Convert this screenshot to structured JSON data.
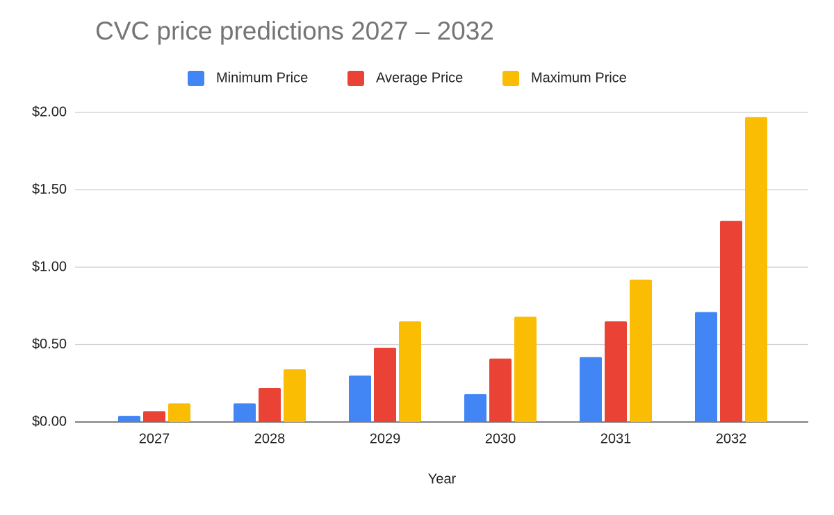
{
  "chart_data": {
    "type": "bar",
    "title": "CVC price predictions 2027 – 2032",
    "x_label": "Year",
    "categories": [
      "2027",
      "2028",
      "2029",
      "2030",
      "2031",
      "2032"
    ],
    "series": [
      {
        "name": "Minimum Price",
        "color": "#4285f4",
        "values": [
          0.04,
          0.12,
          0.3,
          0.18,
          0.42,
          0.71
        ]
      },
      {
        "name": "Average Price",
        "color": "#ea4335",
        "values": [
          0.07,
          0.22,
          0.48,
          0.41,
          0.65,
          1.3
        ]
      },
      {
        "name": "Maximum Price",
        "color": "#fbbc04",
        "values": [
          0.12,
          0.34,
          0.65,
          0.68,
          0.92,
          1.97
        ]
      }
    ],
    "ylim": [
      0,
      2
    ],
    "yticks": [
      {
        "value": 0,
        "label": "$0.00"
      },
      {
        "value": 0.5,
        "label": "$0.50"
      },
      {
        "value": 1,
        "label": "$1.00"
      },
      {
        "value": 1.5,
        "label": "$1.50"
      },
      {
        "value": 2,
        "label": "$2.00"
      }
    ],
    "grid": true,
    "legend": "top"
  }
}
